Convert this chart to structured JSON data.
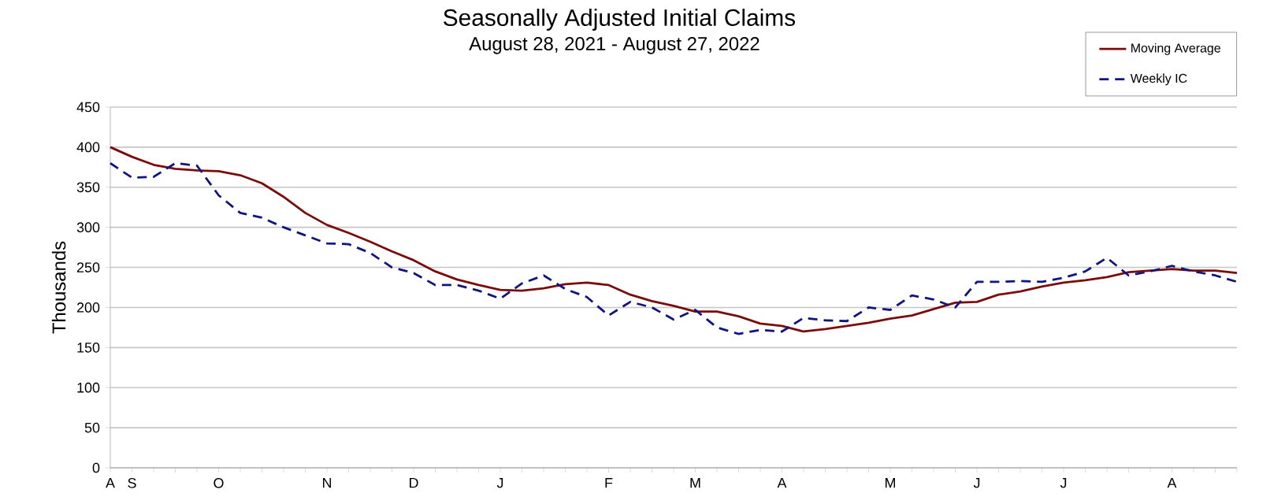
{
  "chart_data": {
    "type": "line",
    "title": "Seasonally Adjusted Initial Claims",
    "subtitle": "August 28, 2021 - August 27, 2022",
    "ylabel": "Thousands",
    "categories": [
      "A",
      "S",
      null,
      null,
      null,
      "O",
      null,
      null,
      null,
      null,
      "N",
      null,
      null,
      null,
      "D",
      null,
      null,
      null,
      "J",
      null,
      null,
      null,
      null,
      "F",
      null,
      null,
      null,
      "M",
      null,
      null,
      null,
      "A",
      null,
      null,
      null,
      null,
      "M",
      null,
      null,
      null,
      "J",
      null,
      null,
      null,
      "J",
      null,
      null,
      null,
      null,
      "A",
      null,
      null,
      null
    ],
    "ylim": [
      0,
      450
    ],
    "yticks": [
      0,
      50,
      100,
      150,
      200,
      250,
      300,
      350,
      400,
      450
    ],
    "grid": "y",
    "legend": "top right",
    "series": [
      {
        "name": "Moving Average",
        "color": "#7b0c0c",
        "line_style": "solid",
        "values": [
          400,
          388,
          378,
          373,
          371,
          370,
          365,
          355,
          338,
          318,
          303,
          293,
          282,
          270,
          259,
          245,
          235,
          228,
          222,
          221,
          224,
          229,
          231,
          228,
          216,
          208,
          202,
          195,
          195,
          189,
          180,
          177,
          170,
          173,
          177,
          181,
          186,
          190,
          198,
          206,
          207,
          216,
          220,
          226,
          231,
          234,
          238,
          244,
          246,
          248,
          246,
          246,
          243
        ]
      },
      {
        "name": "Weekly IC",
        "color": "#101580",
        "line_style": "dashed",
        "values": [
          380,
          362,
          363,
          380,
          377,
          340,
          318,
          312,
          300,
          290,
          280,
          279,
          268,
          250,
          243,
          228,
          228,
          221,
          211,
          230,
          240,
          223,
          213,
          190,
          207,
          200,
          185,
          197,
          175,
          167,
          172,
          170,
          187,
          184,
          183,
          200,
          197,
          215,
          210,
          200,
          232,
          232,
          233,
          232,
          237,
          245,
          262,
          240,
          245,
          252,
          245,
          240,
          232
        ]
      }
    ]
  }
}
